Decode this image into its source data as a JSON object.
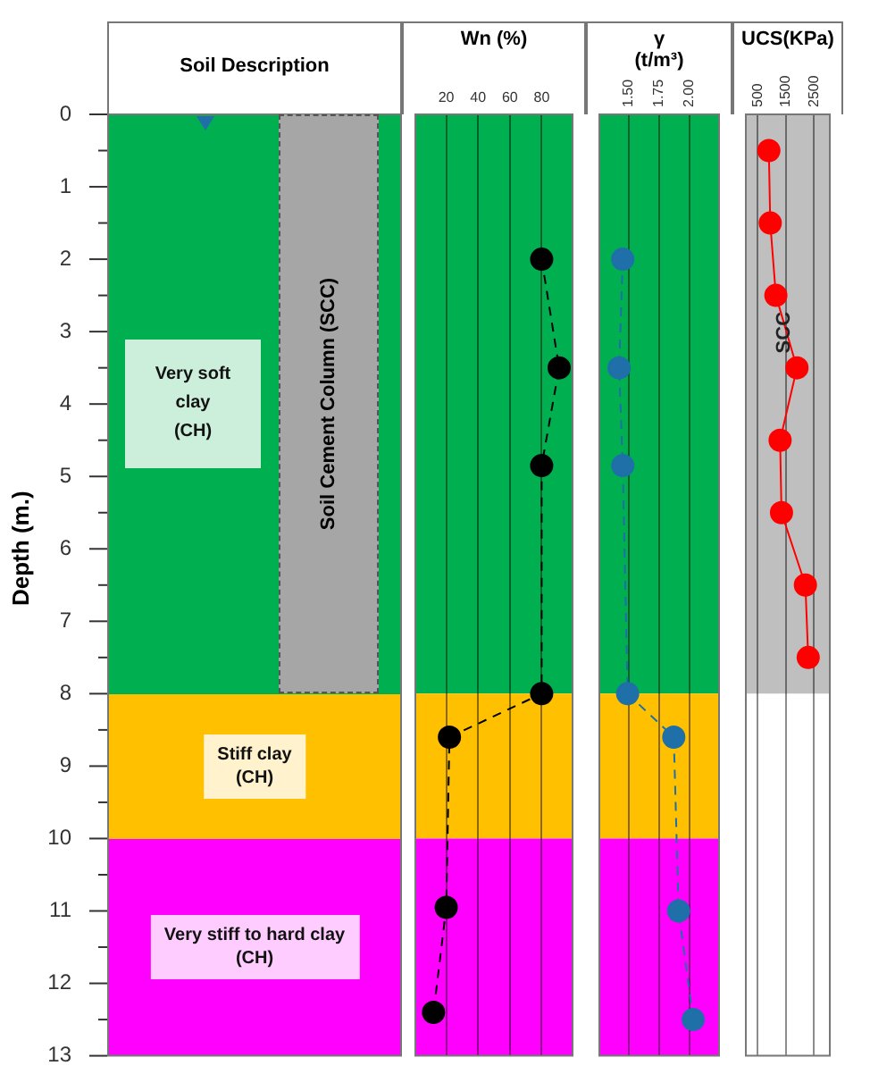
{
  "chart_data": [
    {
      "type": "bar",
      "stacked": true,
      "title": "Soil Description",
      "ylabel": "Depth (m.)",
      "ylim": [
        13,
        0
      ],
      "yticks": [
        0,
        {
          "value": 0.5,
          "label": null
        },
        1,
        {
          "value": 1.5,
          "label": null
        },
        2,
        {
          "value": 2.5,
          "label": null
        },
        3,
        {
          "value": 3.5,
          "label": null
        },
        4,
        {
          "value": 4.5,
          "label": null
        },
        5,
        {
          "value": 5.5,
          "label": null
        },
        6,
        {
          "value": 6.5,
          "label": null
        },
        7,
        {
          "value": 7.5,
          "label": null
        },
        8,
        {
          "value": 8.5,
          "label": null
        },
        9,
        {
          "value": 9.5,
          "label": null
        },
        10,
        {
          "value": 10.5,
          "label": null
        },
        11,
        {
          "value": 11.5,
          "label": null
        },
        12,
        {
          "value": 12.5,
          "label": null
        },
        13
      ],
      "tick_labels": "y",
      "categories": [
        null
      ],
      "series": [
        {
          "name": "Very soft clay (CH)",
          "color": "#00b050",
          "values": [
            8
          ]
        },
        {
          "name": "Stiff clay (CH)",
          "color": "#ffc000",
          "values": [
            2
          ]
        },
        {
          "name": "Very stiff to hard clay (CH)",
          "color": "#ff00ff",
          "values": [
            3
          ]
        }
      ],
      "bands": [
        {
          "axis": "y",
          "from": 0,
          "to": 8,
          "label": "Soil Cement Column (SCC)",
          "color": "#a6a6a6"
        }
      ]
    },
    {
      "type": "line",
      "title": "Wn (%)",
      "xlim": [
        0,
        100
      ],
      "xticks": [
        20,
        40,
        60,
        80
      ],
      "ylim": [
        13,
        0
      ],
      "grid": "x",
      "tick_labels": "x",
      "marker": "circle",
      "line_style": "dashed",
      "bands": [
        {
          "axis": "y",
          "from": 0,
          "to": 8,
          "color": "#00b050"
        },
        {
          "axis": "y",
          "from": 8,
          "to": 10,
          "color": "#ffc000"
        },
        {
          "axis": "y",
          "from": 10,
          "to": 13,
          "color": "#ff00ff"
        }
      ],
      "series": [
        {
          "color": "#000000",
          "x": [
            80,
            91,
            80,
            80,
            22,
            20,
            12
          ],
          "values": [
            2,
            3.5,
            4.85,
            8,
            8.6,
            10.95,
            12.4
          ]
        }
      ]
    },
    {
      "type": "line",
      "title": "γ\n(t/m³)",
      "xlim": [
        1.25,
        2.25
      ],
      "xticks": [
        {
          "value": 1.5,
          "label": "1.50"
        },
        {
          "value": 1.75,
          "label": "1.75"
        },
        {
          "value": 2,
          "label": "2.00"
        }
      ],
      "ylim": [
        13,
        0
      ],
      "grid": "x",
      "tick_labels": "x",
      "marker": "circle",
      "line_style": "dashed",
      "bands": [
        {
          "axis": "y",
          "from": 0,
          "to": 8,
          "color": "#00b050"
        },
        {
          "axis": "y",
          "from": 8,
          "to": 10,
          "color": "#ffc000"
        },
        {
          "axis": "y",
          "from": 10,
          "to": 13,
          "color": "#ff00ff"
        }
      ],
      "series": [
        {
          "color": "#1f6fa8",
          "x": [
            1.45,
            1.42,
            1.45,
            1.49,
            1.87,
            1.91,
            2.03
          ],
          "values": [
            2,
            3.5,
            4.85,
            8,
            8.6,
            11,
            12.5
          ]
        }
      ]
    },
    {
      "type": "line",
      "title": "UCS(KPa)",
      "xlim": [
        50,
        3100
      ],
      "xticks": [
        500,
        1500,
        2500
      ],
      "ylim": [
        13,
        0
      ],
      "grid": "x",
      "tick_labels": "x",
      "marker": "circle",
      "line_style": "solid",
      "bands": [
        {
          "axis": "y",
          "from": 0,
          "to": 8,
          "color": "#bfbfbf",
          "label": "SCC"
        }
      ],
      "series": [
        {
          "color": "#ff0000",
          "x": [
            900,
            950,
            1150,
            1900,
            1300,
            1350,
            2200,
            2300
          ],
          "values": [
            0.5,
            1.5,
            2.5,
            3.5,
            4.5,
            5.5,
            6.5,
            7.5
          ]
        }
      ]
    }
  ]
}
